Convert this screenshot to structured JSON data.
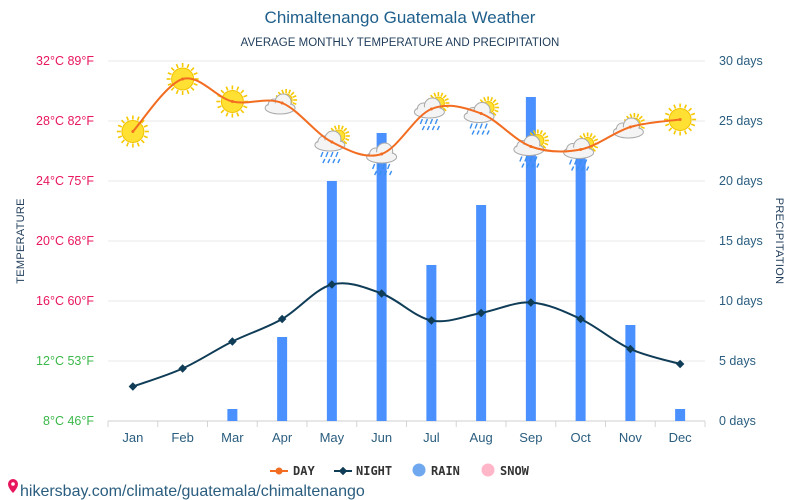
{
  "title": "Chimaltenango Guatemala Weather",
  "subtitle": "AVERAGE MONTHLY TEMPERATURE AND PRECIPITATION",
  "footer_url": "hikersbay.com/climate/guatemala/chimaltenango",
  "colors": {
    "day_line": "#f26d21",
    "night_line": "#0f3c57",
    "rain_bar": "#4a90ff",
    "snow": "#ffb6c8",
    "grid": "#e9e9e9",
    "warm_tick": "#e8175d",
    "cool_tick": "#3bb84a",
    "sun": "#ffe033"
  },
  "chart_data": {
    "type": "line+bar",
    "title": "Chimaltenango Guatemala Weather",
    "subtitle": "AVERAGE MONTHLY TEMPERATURE AND PRECIPITATION",
    "categories": [
      "Jan",
      "Feb",
      "Mar",
      "Apr",
      "May",
      "Jun",
      "Jul",
      "Aug",
      "Sep",
      "Oct",
      "Nov",
      "Dec"
    ],
    "left_axis": {
      "label": "TEMPERATURE",
      "range": [
        8,
        32
      ],
      "ticks": [
        {
          "value": 32,
          "label": "32°C 89°F"
        },
        {
          "value": 28,
          "label": "28°C 82°F"
        },
        {
          "value": 24,
          "label": "24°C 75°F"
        },
        {
          "value": 20,
          "label": "20°C 68°F"
        },
        {
          "value": 16,
          "label": "16°C 60°F"
        },
        {
          "value": 12,
          "label": "12°C 53°F"
        },
        {
          "value": 8,
          "label": "8°C 46°F"
        }
      ]
    },
    "right_axis": {
      "label": "PRECIPITATION",
      "range": [
        0,
        30
      ],
      "ticks": [
        {
          "value": 30,
          "label": "30 days"
        },
        {
          "value": 25,
          "label": "25 days"
        },
        {
          "value": 20,
          "label": "20 days"
        },
        {
          "value": 15,
          "label": "15 days"
        },
        {
          "value": 10,
          "label": "10 days"
        },
        {
          "value": 5,
          "label": "5 days"
        },
        {
          "value": 0,
          "label": "0 days"
        }
      ]
    },
    "series": [
      {
        "name": "DAY",
        "type": "line",
        "axis": "left",
        "values": [
          27.3,
          30.8,
          29.3,
          29.2,
          26.6,
          25.8,
          28.8,
          28.5,
          26.3,
          26.1,
          27.6,
          28.1
        ]
      },
      {
        "name": "NIGHT",
        "type": "line",
        "axis": "left",
        "values": [
          10.3,
          11.5,
          13.3,
          14.8,
          17.1,
          16.5,
          14.7,
          15.2,
          15.9,
          14.8,
          12.8,
          11.8
        ]
      },
      {
        "name": "RAIN",
        "type": "bar",
        "axis": "right",
        "values": [
          0,
          0,
          1,
          7,
          20,
          24,
          13,
          18,
          27,
          22,
          8,
          1
        ]
      },
      {
        "name": "SNOW",
        "type": "bar",
        "axis": "right",
        "values": [
          0,
          0,
          0,
          0,
          0,
          0,
          0,
          0,
          0,
          0,
          0,
          0
        ]
      }
    ],
    "weather_icons": [
      "sun",
      "sun",
      "sun",
      "partly-cloudy",
      "rain-sun",
      "rain",
      "rain-sun",
      "rain-sun",
      "rain-sun",
      "rain-sun",
      "partly-cloudy",
      "sun"
    ],
    "legend": [
      "DAY",
      "NIGHT",
      "RAIN",
      "SNOW"
    ],
    "legend_position": "bottom-center"
  }
}
